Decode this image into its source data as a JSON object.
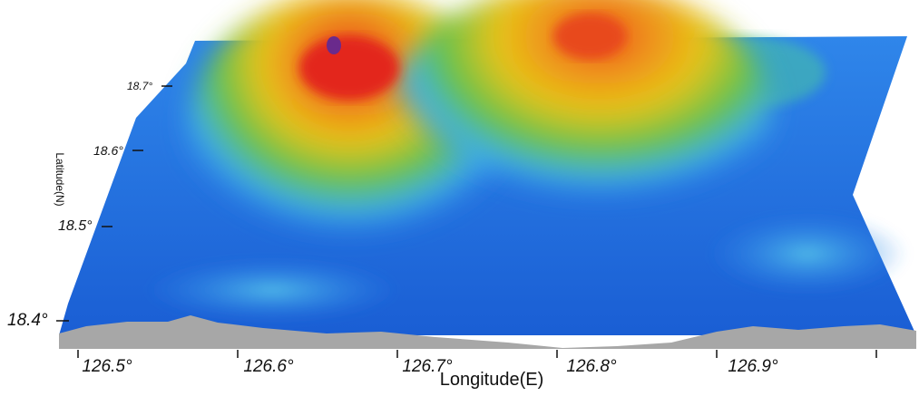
{
  "map": {
    "x_axis_label": "Longitude(E)",
    "y_axis_label": "Latitude(N)",
    "longitude_ticks": [
      "126.5°",
      "126.6°",
      "126.7°",
      "126.8°",
      "126.9°"
    ],
    "latitude_ticks": [
      "18.7°",
      "18.6°",
      "18.5°",
      "18.4°"
    ],
    "colors": {
      "deep": "#1f6fe0",
      "shallow_blue": "#3fb0ea",
      "green": "#5fc24a",
      "yellow": "#e8c419",
      "orange": "#ef7a1a",
      "red": "#e3261c",
      "peak": "#6a2a8c",
      "base": "#a7a7a7"
    }
  }
}
